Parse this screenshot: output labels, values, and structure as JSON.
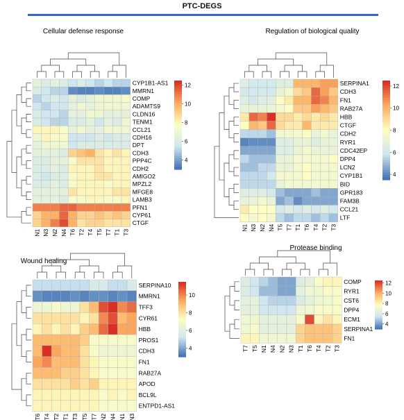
{
  "title": "PTC-DEGS",
  "colors": {
    "low": "#4575b4",
    "mid_low": "#cfe6f1",
    "mid": "#fdfdc4",
    "mid_high": "#fdae61",
    "high": "#d73027",
    "title_rule": "#3a66c4",
    "tree": "#444444",
    "cell_border": "#b0b0b0"
  },
  "chart_data": [
    {
      "type": "heatmap",
      "title": "Cellular defense response",
      "rows": [
        "CYP1B1-AS1",
        "MMRN1",
        "COMP",
        "ADAMTS9",
        "CLDN16",
        "TENM1",
        "CCL21",
        "CDH16",
        "DPT",
        "CDH3",
        "PPP4C",
        "CDH2",
        "AMIGO2",
        "MPZL2",
        "MFGE8",
        "LAMB3",
        "PFN1",
        "CYP61",
        "CTGF"
      ],
      "columns": [
        "N1",
        "N3",
        "N2",
        "N4",
        "T6",
        "T2",
        "T4",
        "T5",
        "T7",
        "T1",
        "T3"
      ],
      "colorbar": {
        "ticks": [
          12,
          10,
          8,
          6,
          4
        ],
        "range": [
          3,
          12.5
        ]
      },
      "values": [
        [
          6.5,
          6.0,
          6.5,
          6.0,
          5.5,
          6.0,
          5.5,
          5.0,
          5.5,
          5.0,
          5.0
        ],
        [
          6.0,
          5.5,
          5.0,
          5.0,
          3.5,
          3.3,
          3.3,
          3.5,
          3.3,
          3.3,
          3.5
        ],
        [
          5.0,
          5.5,
          6.0,
          5.5,
          6.5,
          6.0,
          6.5,
          7.0,
          7.0,
          7.0,
          7.5
        ],
        [
          5.5,
          5.0,
          5.5,
          5.5,
          6.5,
          7.0,
          6.5,
          7.0,
          7.0,
          7.0,
          7.0
        ],
        [
          6.0,
          5.5,
          5.5,
          5.0,
          6.5,
          6.5,
          7.0,
          7.0,
          6.5,
          6.5,
          6.5
        ],
        [
          6.0,
          5.5,
          5.0,
          5.0,
          6.0,
          6.0,
          6.5,
          5.5,
          6.5,
          6.0,
          7.0
        ],
        [
          8.0,
          8.0,
          8.0,
          7.5,
          6.5,
          7.0,
          6.5,
          6.5,
          7.0,
          7.0,
          7.0
        ],
        [
          7.0,
          8.0,
          7.5,
          7.5,
          5.5,
          5.5,
          5.5,
          6.0,
          5.5,
          6.0,
          6.0
        ],
        [
          6.5,
          7.0,
          7.0,
          7.0,
          5.5,
          6.0,
          6.0,
          6.0,
          6.0,
          6.0,
          6.0
        ],
        [
          6.5,
          6.5,
          6.5,
          6.0,
          9.0,
          9.5,
          10.0,
          8.5,
          8.0,
          8.5,
          8.0
        ],
        [
          6.0,
          6.0,
          6.5,
          6.5,
          7.5,
          8.5,
          8.5,
          8.5,
          8.0,
          8.0,
          8.0
        ],
        [
          6.0,
          6.0,
          6.5,
          6.0,
          8.0,
          8.0,
          8.0,
          8.5,
          8.0,
          8.0,
          8.0
        ],
        [
          6.0,
          5.5,
          6.0,
          6.0,
          7.5,
          8.0,
          8.0,
          8.5,
          8.5,
          8.0,
          8.0
        ],
        [
          6.0,
          6.0,
          6.5,
          6.0,
          7.5,
          8.0,
          8.0,
          8.0,
          7.5,
          8.0,
          8.0
        ],
        [
          6.5,
          6.5,
          6.5,
          6.5,
          8.5,
          8.0,
          8.0,
          8.0,
          8.0,
          8.5,
          8.5
        ],
        [
          6.5,
          6.5,
          6.5,
          6.0,
          7.5,
          7.5,
          8.0,
          8.0,
          7.5,
          7.5,
          8.0
        ],
        [
          11.0,
          11.0,
          11.0,
          11.5,
          11.5,
          11.0,
          11.0,
          11.0,
          11.0,
          11.0,
          11.0
        ],
        [
          9.0,
          10.0,
          10.0,
          11.5,
          10.0,
          9.0,
          9.0,
          9.5,
          9.0,
          9.5,
          9.0
        ],
        [
          9.0,
          10.0,
          11.0,
          12.0,
          10.0,
          8.5,
          9.0,
          9.0,
          8.5,
          8.5,
          8.5
        ]
      ]
    },
    {
      "type": "heatmap",
      "title": "Regulation of biological quality",
      "rows": [
        "SERPINA1",
        "CDH3",
        "FN1",
        "RAB27A",
        "HBB",
        "CTGF",
        "CDH2",
        "RYR1",
        "CDC42EP",
        "DPP4",
        "LCN2",
        "CYP1B1",
        "BID",
        "GPR183",
        "FAM3B",
        "CCL21",
        "LTF"
      ],
      "columns": [
        "N1",
        "N3",
        "N2",
        "N4",
        "T5",
        "T7",
        "T1",
        "T6",
        "T4",
        "T2",
        "T3"
      ],
      "colorbar": {
        "ticks": [
          12,
          10,
          8,
          6,
          4
        ],
        "range": [
          3.5,
          12.5
        ]
      },
      "values": [
        [
          6.5,
          6.0,
          6.0,
          6.0,
          6.5,
          6.5,
          10.0,
          10.0,
          10.0,
          10.5,
          10.5
        ],
        [
          6.0,
          6.0,
          6.0,
          6.0,
          7.0,
          7.5,
          9.0,
          9.5,
          11.5,
          10.5,
          9.5
        ],
        [
          6.5,
          6.0,
          6.5,
          6.5,
          8.0,
          8.5,
          10.0,
          10.0,
          11.5,
          11.0,
          10.0
        ],
        [
          7.0,
          7.0,
          7.0,
          7.0,
          7.5,
          8.0,
          9.5,
          9.5,
          10.5,
          10.0,
          9.5
        ],
        [
          8.5,
          11.5,
          11.0,
          12.5,
          9.0,
          9.0,
          8.5,
          9.0,
          8.5,
          9.0,
          8.5
        ],
        [
          8.0,
          10.0,
          9.5,
          11.5,
          9.0,
          8.5,
          8.5,
          10.0,
          8.5,
          8.5,
          8.5
        ],
        [
          5.5,
          5.5,
          5.5,
          5.0,
          7.5,
          7.5,
          7.5,
          8.0,
          7.0,
          7.5,
          7.0
        ],
        [
          3.8,
          4.0,
          4.0,
          4.0,
          6.5,
          6.5,
          7.0,
          7.0,
          6.5,
          7.0,
          7.0
        ],
        [
          4.5,
          4.5,
          4.5,
          4.5,
          6.5,
          6.5,
          7.0,
          7.5,
          7.0,
          7.0,
          7.0
        ],
        [
          5.5,
          5.0,
          5.0,
          5.0,
          7.0,
          7.0,
          7.5,
          7.5,
          7.5,
          7.5,
          8.0
        ],
        [
          5.0,
          5.0,
          5.5,
          5.5,
          7.0,
          7.0,
          7.5,
          8.0,
          7.5,
          7.5,
          7.5
        ],
        [
          5.5,
          5.5,
          5.5,
          6.0,
          7.5,
          7.5,
          7.5,
          8.0,
          7.5,
          7.5,
          7.5
        ],
        [
          5.5,
          5.5,
          5.5,
          5.5,
          7.0,
          7.5,
          7.5,
          7.5,
          7.5,
          7.5,
          7.5
        ],
        [
          6.5,
          6.5,
          6.5,
          6.0,
          5.0,
          4.5,
          4.5,
          4.5,
          5.0,
          4.5,
          4.5
        ],
        [
          7.0,
          7.0,
          7.5,
          7.0,
          4.5,
          5.0,
          4.0,
          4.5,
          4.5,
          4.5,
          4.5
        ],
        [
          8.5,
          8.0,
          8.0,
          8.0,
          6.0,
          6.5,
          6.0,
          6.5,
          6.0,
          6.5,
          6.0
        ],
        [
          8.0,
          7.5,
          8.0,
          7.5,
          5.5,
          5.0,
          5.5,
          5.5,
          5.0,
          5.5,
          5.0
        ]
      ]
    },
    {
      "type": "heatmap",
      "title": "Wound healing",
      "rows": [
        "SERPINA10",
        "MMRN1",
        "TFF3",
        "CYR61",
        "HBB",
        "PROS1",
        "CDH3",
        "FN1",
        "RAB27A",
        "APOD",
        "BCL9L",
        "ENTPD1-AS1"
      ],
      "columns": [
        "T6",
        "T4",
        "T2",
        "T1",
        "T3",
        "T5",
        "T7",
        "N2",
        "N4",
        "N1",
        "N3"
      ],
      "colorbar": {
        "ticks": [
          10,
          8,
          6,
          4
        ],
        "range": [
          3,
          11.5
        ]
      },
      "values": [
        [
          5.0,
          5.0,
          5.0,
          5.0,
          5.0,
          5.0,
          5.5,
          5.5,
          5.0,
          5.0,
          5.5
        ],
        [
          3.5,
          3.3,
          3.3,
          3.3,
          3.5,
          3.3,
          3.5,
          3.5,
          3.3,
          3.5,
          3.3
        ],
        [
          6.5,
          6.5,
          7.0,
          6.5,
          6.5,
          8.0,
          9.0,
          11.0,
          11.5,
          10.0,
          10.5
        ],
        [
          8.0,
          8.0,
          8.0,
          8.0,
          8.0,
          7.5,
          8.0,
          10.0,
          11.0,
          9.0,
          9.5
        ],
        [
          7.5,
          8.0,
          7.5,
          8.0,
          7.5,
          8.5,
          9.0,
          10.5,
          11.5,
          9.5,
          9.5
        ],
        [
          9.0,
          9.0,
          9.0,
          9.0,
          9.0,
          8.5,
          7.0,
          7.0,
          7.0,
          7.0,
          7.0
        ],
        [
          9.0,
          11.5,
          9.5,
          9.0,
          9.0,
          8.0,
          7.0,
          6.5,
          6.5,
          6.5,
          6.5
        ],
        [
          9.5,
          10.0,
          9.0,
          9.0,
          9.0,
          8.0,
          7.5,
          7.0,
          7.0,
          7.0,
          7.0
        ],
        [
          9.0,
          9.0,
          9.0,
          8.5,
          8.5,
          8.0,
          7.5,
          7.0,
          7.0,
          7.0,
          7.0
        ],
        [
          8.0,
          8.0,
          8.0,
          8.0,
          8.5,
          8.0,
          8.5,
          7.5,
          7.5,
          7.5,
          7.5
        ],
        [
          7.5,
          7.5,
          7.5,
          7.5,
          7.5,
          7.5,
          7.5,
          7.0,
          7.5,
          7.0,
          7.5
        ],
        [
          7.5,
          7.5,
          7.5,
          7.5,
          7.5,
          7.5,
          7.5,
          7.0,
          7.0,
          7.0,
          7.0
        ]
      ]
    },
    {
      "type": "heatmap",
      "title": "Protease binding",
      "rows": [
        "COMP",
        "RYR1",
        "CST6",
        "DPP4",
        "ECM1",
        "SERPINA1",
        "FN1"
      ],
      "columns": [
        "T7",
        "T5",
        "N1",
        "N4",
        "N2",
        "N3",
        "T1",
        "T6",
        "T4",
        "T2",
        "T3"
      ],
      "colorbar": {
        "ticks": [
          12,
          10,
          8,
          6,
          4
        ],
        "range": [
          3,
          12.5
        ]
      },
      "values": [
        [
          6.0,
          5.5,
          5.0,
          4.5,
          4.0,
          4.0,
          6.0,
          6.5,
          7.5,
          8.0,
          8.0
        ],
        [
          6.0,
          5.5,
          4.5,
          4.5,
          4.0,
          4.0,
          6.5,
          7.0,
          7.0,
          7.5,
          7.5
        ],
        [
          6.5,
          6.5,
          5.5,
          5.0,
          5.0,
          5.0,
          6.0,
          6.5,
          7.0,
          7.0,
          7.5
        ],
        [
          6.5,
          6.5,
          5.5,
          5.5,
          5.5,
          5.5,
          7.0,
          7.0,
          7.5,
          7.5,
          7.5
        ],
        [
          7.0,
          7.0,
          6.5,
          6.5,
          6.5,
          6.5,
          7.5,
          12.0,
          8.0,
          8.5,
          8.0
        ],
        [
          7.0,
          7.5,
          6.5,
          6.5,
          6.5,
          6.5,
          9.0,
          9.5,
          9.5,
          9.5,
          9.0
        ],
        [
          8.0,
          8.0,
          7.0,
          7.0,
          7.0,
          7.0,
          9.0,
          9.5,
          9.5,
          9.5,
          9.0
        ]
      ]
    }
  ]
}
